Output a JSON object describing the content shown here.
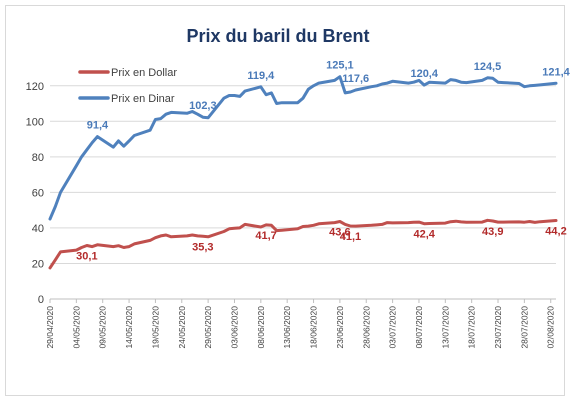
{
  "chart_data": {
    "type": "line",
    "title": "Prix du baril du Brent",
    "ylim": [
      0,
      130
    ],
    "yticks": [
      0,
      20,
      40,
      60,
      80,
      100,
      120
    ],
    "grid": true,
    "legend_position": "top-left",
    "x_start": "29/04/2020",
    "x_end": "03/08/2020",
    "x_tick_labels": [
      "29/04/2020",
      "04/05/2020",
      "09/05/2020",
      "14/05/2020",
      "19/05/2020",
      "24/05/2020",
      "29/05/2020",
      "03/06/2020",
      "08/06/2020",
      "13/06/2020",
      "18/06/2020",
      "23/06/2020",
      "28/06/2020",
      "03/07/2020",
      "08/07/2020",
      "13/07/2020",
      "18/07/2020",
      "23/07/2020",
      "28/07/2020",
      "02/08/2020"
    ],
    "series": [
      {
        "name": "Prix en Dollar",
        "color": "#c0504d",
        "points": [
          [
            "29/04/2020",
            17.5
          ],
          [
            "30/04/2020",
            22
          ],
          [
            "01/05/2020",
            26.5
          ],
          [
            "04/05/2020",
            27.5
          ],
          [
            "05/05/2020",
            29
          ],
          [
            "06/05/2020",
            30.1
          ],
          [
            "07/05/2020",
            29.5
          ],
          [
            "08/05/2020",
            30.5
          ],
          [
            "11/05/2020",
            29.5
          ],
          [
            "12/05/2020",
            30
          ],
          [
            "13/05/2020",
            29
          ],
          [
            "14/05/2020",
            29.5
          ],
          [
            "15/05/2020",
            31
          ],
          [
            "18/05/2020",
            33
          ],
          [
            "19/05/2020",
            34.5
          ],
          [
            "20/05/2020",
            35.5
          ],
          [
            "21/05/2020",
            36
          ],
          [
            "22/05/2020",
            35
          ],
          [
            "25/05/2020",
            35.5
          ],
          [
            "26/05/2020",
            36
          ],
          [
            "27/05/2020",
            35.5
          ],
          [
            "28/05/2020",
            35.3
          ],
          [
            "29/05/2020",
            35
          ],
          [
            "01/06/2020",
            38
          ],
          [
            "02/06/2020",
            39.5
          ],
          [
            "03/06/2020",
            39.8
          ],
          [
            "04/06/2020",
            40
          ],
          [
            "05/06/2020",
            42
          ],
          [
            "08/06/2020",
            40.5
          ],
          [
            "09/06/2020",
            41.7
          ],
          [
            "10/06/2020",
            41.5
          ],
          [
            "11/06/2020",
            38.5
          ],
          [
            "12/06/2020",
            38.7
          ],
          [
            "15/06/2020",
            39.5
          ],
          [
            "16/06/2020",
            40.8
          ],
          [
            "17/06/2020",
            41
          ],
          [
            "18/06/2020",
            41.5
          ],
          [
            "19/06/2020",
            42.3
          ],
          [
            "22/06/2020",
            43
          ],
          [
            "23/06/2020",
            43.6
          ],
          [
            "24/06/2020",
            42
          ],
          [
            "25/06/2020",
            41.1
          ],
          [
            "26/06/2020",
            41
          ],
          [
            "29/06/2020",
            41.5
          ],
          [
            "30/06/2020",
            41.7
          ],
          [
            "01/07/2020",
            42
          ],
          [
            "02/07/2020",
            43
          ],
          [
            "03/07/2020",
            42.8
          ],
          [
            "06/07/2020",
            43
          ],
          [
            "07/07/2020",
            43.2
          ],
          [
            "08/07/2020",
            43.3
          ],
          [
            "09/07/2020",
            42.4
          ],
          [
            "10/07/2020",
            42.5
          ],
          [
            "13/07/2020",
            42.7
          ],
          [
            "14/07/2020",
            43.5
          ],
          [
            "15/07/2020",
            43.8
          ],
          [
            "16/07/2020",
            43.4
          ],
          [
            "17/07/2020",
            43.2
          ],
          [
            "20/07/2020",
            43.3
          ],
          [
            "21/07/2020",
            44.3
          ],
          [
            "22/07/2020",
            43.9
          ],
          [
            "23/07/2020",
            43.3
          ],
          [
            "24/07/2020",
            43.3
          ],
          [
            "27/07/2020",
            43.4
          ],
          [
            "28/07/2020",
            43.2
          ],
          [
            "29/07/2020",
            43.6
          ],
          [
            "30/07/2020",
            43.1
          ],
          [
            "31/07/2020",
            43.5
          ],
          [
            "03/08/2020",
            44.2
          ]
        ],
        "labels": [
          {
            "date": "06/05/2020",
            "text": "30,1"
          },
          {
            "date": "28/05/2020",
            "text": "35,3"
          },
          {
            "date": "09/06/2020",
            "text": "41,7"
          },
          {
            "date": "23/06/2020",
            "text": "43,6"
          },
          {
            "date": "25/06/2020",
            "text": "41,1"
          },
          {
            "date": "09/07/2020",
            "text": "42,4"
          },
          {
            "date": "22/07/2020",
            "text": "43,9"
          },
          {
            "date": "03/08/2020",
            "text": "44,2"
          }
        ]
      },
      {
        "name": "Prix en Dinar",
        "color": "#4f81bd",
        "points": [
          [
            "29/04/2020",
            45
          ],
          [
            "30/04/2020",
            52
          ],
          [
            "01/05/2020",
            60
          ],
          [
            "04/05/2020",
            75
          ],
          [
            "05/05/2020",
            80
          ],
          [
            "06/05/2020",
            84
          ],
          [
            "07/05/2020",
            88
          ],
          [
            "08/05/2020",
            91.4
          ],
          [
            "11/05/2020",
            85.5
          ],
          [
            "12/05/2020",
            89
          ],
          [
            "13/05/2020",
            86
          ],
          [
            "14/05/2020",
            89
          ],
          [
            "15/05/2020",
            92
          ],
          [
            "18/05/2020",
            95
          ],
          [
            "19/05/2020",
            101
          ],
          [
            "20/05/2020",
            101.5
          ],
          [
            "21/05/2020",
            104
          ],
          [
            "22/05/2020",
            105
          ],
          [
            "25/05/2020",
            104.5
          ],
          [
            "26/05/2020",
            105.5
          ],
          [
            "27/05/2020",
            104
          ],
          [
            "28/05/2020",
            102.3
          ],
          [
            "29/05/2020",
            102
          ],
          [
            "01/06/2020",
            113
          ],
          [
            "02/06/2020",
            114.5
          ],
          [
            "03/06/2020",
            114.5
          ],
          [
            "04/06/2020",
            114
          ],
          [
            "05/06/2020",
            117
          ],
          [
            "08/06/2020",
            119.4
          ],
          [
            "09/06/2020",
            115
          ],
          [
            "10/06/2020",
            116
          ],
          [
            "11/06/2020",
            110
          ],
          [
            "12/06/2020",
            110.5
          ],
          [
            "15/06/2020",
            110.5
          ],
          [
            "16/06/2020",
            113
          ],
          [
            "17/06/2020",
            118
          ],
          [
            "18/06/2020",
            120
          ],
          [
            "19/06/2020",
            121.5
          ],
          [
            "22/06/2020",
            123
          ],
          [
            "23/06/2020",
            125.1
          ],
          [
            "24/06/2020",
            116
          ],
          [
            "25/06/2020",
            116.5
          ],
          [
            "26/06/2020",
            117.6
          ],
          [
            "29/06/2020",
            119.5
          ],
          [
            "30/06/2020",
            120
          ],
          [
            "01/07/2020",
            121
          ],
          [
            "02/07/2020",
            121.5
          ],
          [
            "03/07/2020",
            122.5
          ],
          [
            "06/07/2020",
            121.5
          ],
          [
            "07/07/2020",
            122
          ],
          [
            "08/07/2020",
            123
          ],
          [
            "09/07/2020",
            120.4
          ],
          [
            "10/07/2020",
            122
          ],
          [
            "13/07/2020",
            121.5
          ],
          [
            "14/07/2020",
            123.5
          ],
          [
            "15/07/2020",
            123
          ],
          [
            "16/07/2020",
            122
          ],
          [
            "17/07/2020",
            121.8
          ],
          [
            "20/07/2020",
            123
          ],
          [
            "21/07/2020",
            124.5
          ],
          [
            "22/07/2020",
            124.2
          ],
          [
            "23/07/2020",
            122
          ],
          [
            "24/07/2020",
            121.8
          ],
          [
            "27/07/2020",
            121.3
          ],
          [
            "28/07/2020",
            119.5
          ],
          [
            "29/07/2020",
            120
          ],
          [
            "30/07/2020",
            120.2
          ],
          [
            "31/07/2020",
            120.5
          ],
          [
            "03/08/2020",
            121.4
          ]
        ],
        "labels": [
          {
            "date": "08/05/2020",
            "text": "91,4"
          },
          {
            "date": "28/05/2020",
            "text": "102,3"
          },
          {
            "date": "08/06/2020",
            "text": "119,4"
          },
          {
            "date": "23/06/2020",
            "text": "125,1"
          },
          {
            "date": "26/06/2020",
            "text": "117,6"
          },
          {
            "date": "09/07/2020",
            "text": "120,4"
          },
          {
            "date": "21/07/2020",
            "text": "124,5"
          },
          {
            "date": "03/08/2020",
            "text": "121,4"
          }
        ]
      }
    ]
  }
}
